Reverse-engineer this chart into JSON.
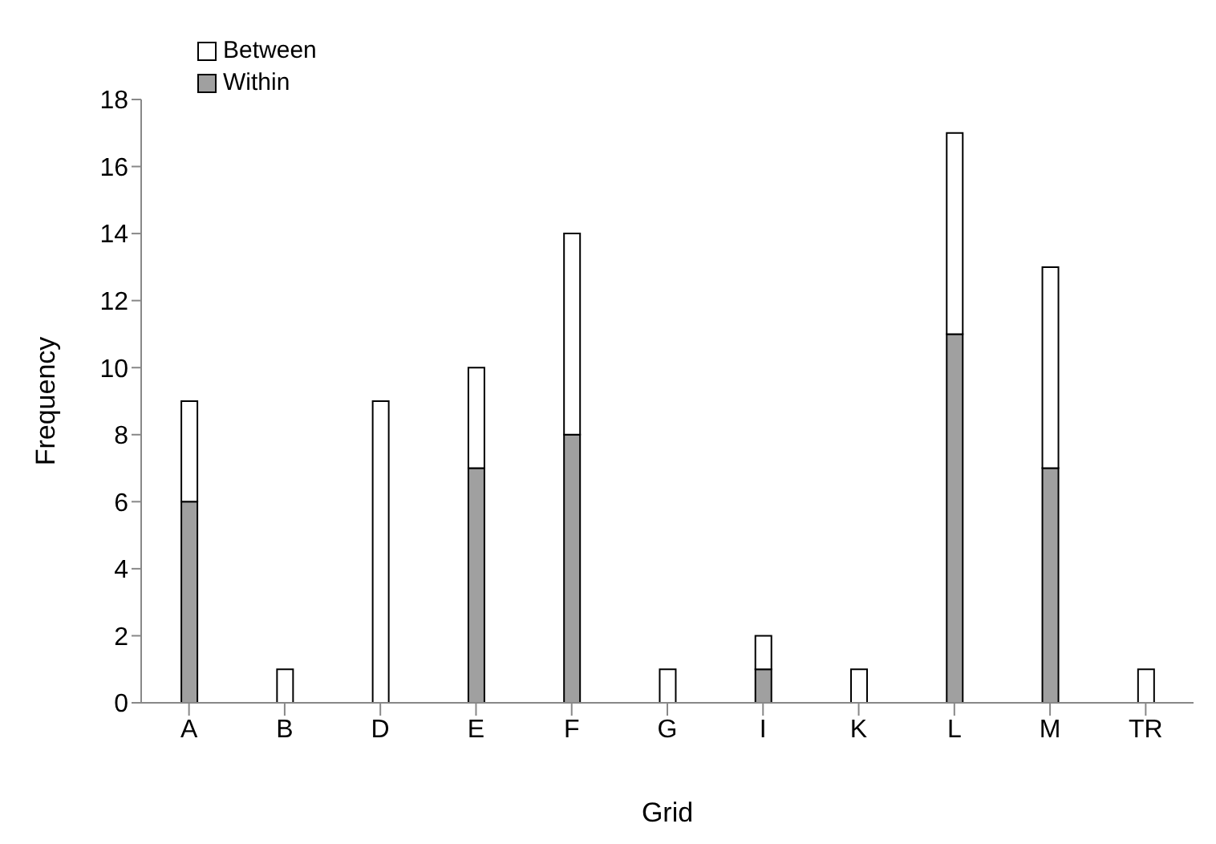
{
  "chart_data": {
    "type": "bar",
    "xlabel": "Grid",
    "ylabel": "Frequency",
    "categories": [
      "A",
      "B",
      "D",
      "E",
      "F",
      "G",
      "I",
      "K",
      "L",
      "M",
      "TR"
    ],
    "series": [
      {
        "name": "Within",
        "color": "#a0a0a0",
        "values": [
          6,
          0,
          0,
          7,
          8,
          0,
          1,
          0,
          11,
          7,
          0
        ]
      },
      {
        "name": "Between",
        "color": "#ffffff",
        "values": [
          3,
          1,
          9,
          3,
          6,
          1,
          1,
          1,
          6,
          6,
          1
        ]
      }
    ],
    "stacked": true,
    "ylim": [
      0,
      18
    ],
    "yticks": [
      0,
      2,
      4,
      6,
      8,
      10,
      12,
      14,
      16,
      18
    ],
    "grid": false,
    "legend": "top left"
  }
}
